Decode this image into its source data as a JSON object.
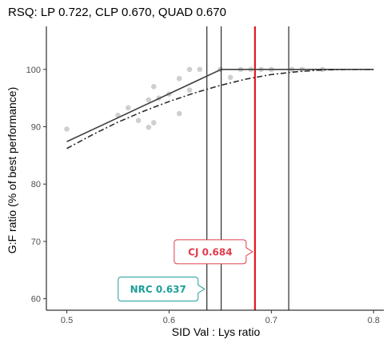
{
  "chart_data": {
    "type": "scatter",
    "title": "RSQ: LP 0.722, CLP 0.670, QUAD 0.670",
    "xlabel": "SID Val : Lys ratio",
    "ylabel": "G:F ratio (% of best performance)",
    "xlim": [
      0.48,
      0.81
    ],
    "ylim": [
      58.0,
      107.5
    ],
    "x_ticks": [
      0.5,
      0.6,
      0.7,
      0.8
    ],
    "x_tick_labels": [
      "0.5",
      "0.6",
      "0.7",
      "0.8"
    ],
    "y_ticks": [
      60,
      70,
      80,
      90,
      100
    ],
    "y_tick_labels": [
      "60",
      "70",
      "80",
      "90",
      "100"
    ],
    "grid": false,
    "points": [
      {
        "x": 0.5,
        "y": 89.6
      },
      {
        "x": 0.55,
        "y": 92.0
      },
      {
        "x": 0.56,
        "y": 93.3
      },
      {
        "x": 0.57,
        "y": 91.1
      },
      {
        "x": 0.58,
        "y": 94.7
      },
      {
        "x": 0.58,
        "y": 89.9
      },
      {
        "x": 0.585,
        "y": 97.0
      },
      {
        "x": 0.585,
        "y": 90.7
      },
      {
        "x": 0.59,
        "y": 95.0
      },
      {
        "x": 0.6,
        "y": 95.7
      },
      {
        "x": 0.61,
        "y": 92.3
      },
      {
        "x": 0.61,
        "y": 98.4
      },
      {
        "x": 0.62,
        "y": 96.4
      },
      {
        "x": 0.62,
        "y": 100.0
      },
      {
        "x": 0.63,
        "y": 100.0
      },
      {
        "x": 0.65,
        "y": 100.0
      },
      {
        "x": 0.66,
        "y": 98.6
      },
      {
        "x": 0.67,
        "y": 100.0
      },
      {
        "x": 0.68,
        "y": 100.0
      },
      {
        "x": 0.69,
        "y": 100.0
      },
      {
        "x": 0.7,
        "y": 100.0
      },
      {
        "x": 0.72,
        "y": 100.0
      },
      {
        "x": 0.73,
        "y": 100.0
      },
      {
        "x": 0.75,
        "y": 100.0
      }
    ],
    "broken_line": {
      "x": [
        0.5,
        0.651,
        0.8
      ],
      "y": [
        87.4,
        100.0,
        100.0
      ]
    },
    "quadratic_curve": {
      "x": [
        0.5,
        0.525,
        0.55,
        0.575,
        0.6,
        0.625,
        0.65,
        0.675,
        0.7,
        0.725,
        0.75,
        0.775,
        0.8
      ],
      "y": [
        86.2,
        88.6,
        90.8,
        92.7,
        94.4,
        95.9,
        97.2,
        98.3,
        99.1,
        99.6,
        99.9,
        100.0,
        100.0
      ]
    },
    "vertical_lines": [
      {
        "x": 0.637,
        "color": "#000000"
      },
      {
        "x": 0.651,
        "color": "#000000"
      },
      {
        "x": 0.684,
        "color": "#e8161f"
      },
      {
        "x": 0.717,
        "color": "#000000"
      }
    ],
    "annotations": [
      {
        "text": "CJ 0.684",
        "x": 0.684,
        "y": 68.2,
        "color": "#e23c4d"
      },
      {
        "text": "NRC 0.637",
        "x": 0.637,
        "y": 61.7,
        "color": "#1f9e9a"
      }
    ],
    "colors": {
      "points": "#cfcfcf",
      "broken_line": "#404040",
      "quadratic_curve": "#2b2b2b",
      "axis": "#000000"
    }
  }
}
